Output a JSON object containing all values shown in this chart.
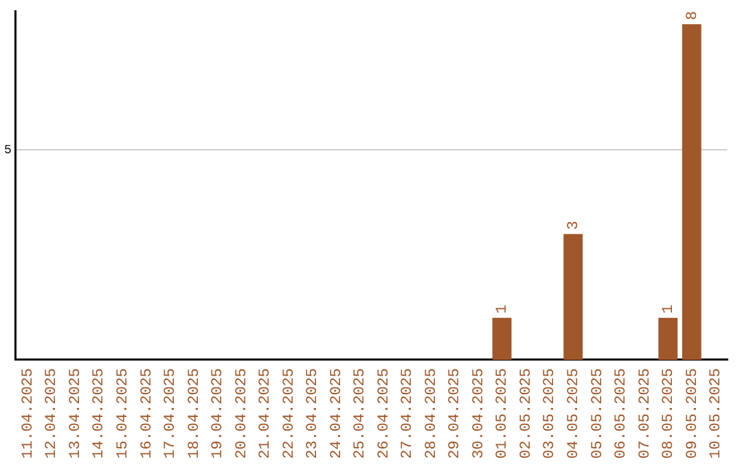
{
  "chart_data": {
    "type": "bar",
    "categories": [
      "11.04.2025",
      "12.04.2025",
      "13.04.2025",
      "14.04.2025",
      "15.04.2025",
      "16.04.2025",
      "17.04.2025",
      "18.04.2025",
      "19.04.2025",
      "20.04.2025",
      "21.04.2025",
      "22.04.2025",
      "23.04.2025",
      "24.04.2025",
      "25.04.2025",
      "26.04.2025",
      "27.04.2025",
      "28.04.2025",
      "29.04.2025",
      "30.04.2025",
      "01.05.2025",
      "02.05.2025",
      "03.05.2025",
      "04.05.2025",
      "05.05.2025",
      "06.05.2025",
      "07.05.2025",
      "08.05.2025",
      "09.05.2025",
      "10.05.2025"
    ],
    "values": [
      null,
      null,
      null,
      null,
      null,
      null,
      null,
      null,
      null,
      null,
      null,
      null,
      null,
      null,
      null,
      null,
      null,
      null,
      null,
      null,
      1,
      null,
      null,
      3,
      null,
      null,
      null,
      1,
      8,
      null
    ],
    "color": "#a0572a",
    "ylim": [
      0,
      8.3
    ],
    "yticks": [
      5
    ],
    "grid": "y",
    "data_labels": true
  }
}
